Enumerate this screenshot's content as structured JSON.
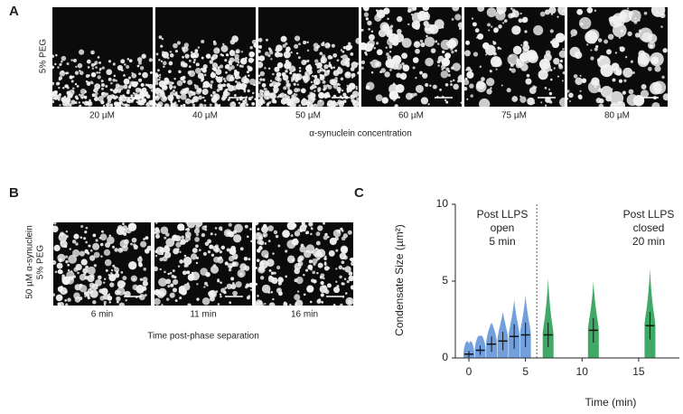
{
  "panel_a": {
    "letter": "A",
    "row_label": "5% PEG",
    "image_labels": [
      "20 µM",
      "40 µM",
      "50 µM",
      "60 µM",
      "75 µM",
      "80 µM"
    ],
    "axis_label": "α-synuclein concentration"
  },
  "panel_b": {
    "letter": "B",
    "row_label_lines": [
      "50 µM α-synuclein",
      "5% PEG"
    ],
    "image_labels": [
      "6 min",
      "11 min",
      "16 min"
    ],
    "axis_label": "Time post-phase separation"
  },
  "panel_c": {
    "letter": "C",
    "chart_data": {
      "type": "scatter",
      "y_label": "Condensate Size (µm²)",
      "x_label": "Time (min)",
      "annotations": [
        {
          "lines": [
            "Post LLPS",
            "open",
            "5 min"
          ]
        },
        {
          "lines": [
            "Post LLPS",
            "closed",
            "20 min"
          ]
        }
      ],
      "divider_x": 6,
      "xlim": [
        -1.2,
        18.6
      ],
      "ylim": [
        0,
        10
      ],
      "xticks": [
        0,
        5,
        10,
        15
      ],
      "yticks": [
        0,
        5,
        10
      ],
      "groups": [
        {
          "x": 0,
          "min": 0.02,
          "max": 0.9,
          "mean": 0.25,
          "sd": 0.2,
          "color": "#5b8fd6"
        },
        {
          "x": 1,
          "min": 0.02,
          "max": 1.4,
          "mean": 0.5,
          "sd": 0.3,
          "color": "#5b8fd6"
        },
        {
          "x": 2,
          "min": 0.02,
          "max": 2.3,
          "mean": 0.9,
          "sd": 0.5,
          "color": "#5b8fd6"
        },
        {
          "x": 3,
          "min": 0.02,
          "max": 3.0,
          "mean": 1.1,
          "sd": 0.6,
          "color": "#5b8fd6"
        },
        {
          "x": 4,
          "min": 0.02,
          "max": 3.8,
          "mean": 1.4,
          "sd": 0.8,
          "color": "#5b8fd6"
        },
        {
          "x": 5,
          "min": 0.02,
          "max": 4.1,
          "mean": 1.5,
          "sd": 0.8,
          "color": "#5b8fd6"
        },
        {
          "x": 7,
          "min": 0.02,
          "max": 5.2,
          "mean": 1.5,
          "sd": 0.8,
          "color": "#1e9a4a"
        },
        {
          "x": 11,
          "min": 0.02,
          "max": 5.0,
          "mean": 1.8,
          "sd": 0.8,
          "color": "#1e9a4a"
        },
        {
          "x": 16,
          "min": 0.02,
          "max": 5.8,
          "mean": 2.1,
          "sd": 0.9,
          "color": "#1e9a4a"
        }
      ]
    }
  }
}
